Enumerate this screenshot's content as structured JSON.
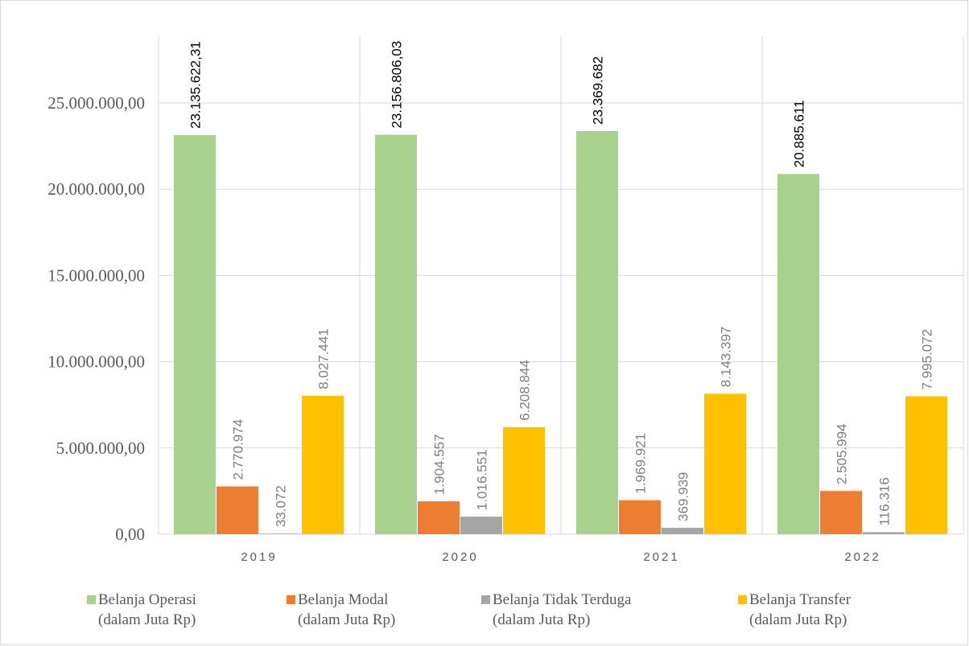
{
  "chart_data": {
    "type": "bar",
    "title": "",
    "xlabel": "",
    "ylabel": "",
    "categories": [
      "2019",
      "2020",
      "2021",
      "2022"
    ],
    "ylim": [
      0,
      25000000
    ],
    "yticks": [
      0,
      5000000,
      10000000,
      15000000,
      20000000,
      25000000
    ],
    "ytick_labels": [
      "0,00",
      "5.000.000,00",
      "10.000.000,00",
      "15.000.000,00",
      "20.000.000,00",
      "25.000.000,00"
    ],
    "grid": true,
    "legend_position": "bottom",
    "series": [
      {
        "name": "Belanja Operasi (dalam Juta Rp)",
        "legend_lines": [
          "Belanja Operasi",
          "(dalam Juta Rp)"
        ],
        "color": "#a9d18e",
        "label_color": "#000000",
        "values": [
          23135622.31,
          23156806.03,
          23369682,
          20885611
        ],
        "labels": [
          "23.135.622,31",
          "23.156.806,03",
          "23.369.682",
          "20.885.611"
        ]
      },
      {
        "name": "Belanja Modal (dalam Juta Rp)",
        "legend_lines": [
          "Belanja Modal",
          "(dalam Juta Rp)"
        ],
        "color": "#ed7d31",
        "label_color": "#7f7f7f",
        "values": [
          2770974,
          1904557,
          1969921,
          2505994
        ],
        "labels": [
          "2.770.974",
          "1.904.557",
          "1.969.921",
          "2.505.994"
        ]
      },
      {
        "name": "Belanja Tidak Terduga (dalam Juta Rp)",
        "legend_lines": [
          "Belanja Tidak Terduga",
          "(dalam Juta Rp)"
        ],
        "color": "#a5a5a5",
        "label_color": "#7f7f7f",
        "values": [
          33072,
          1016551,
          369939,
          116316
        ],
        "labels": [
          "33.072",
          "1.016.551",
          "369.939",
          "116.316"
        ]
      },
      {
        "name": "Belanja Transfer (dalam Juta Rp)",
        "legend_lines": [
          "Belanja Transfer",
          "(dalam Juta Rp)"
        ],
        "color": "#ffc000",
        "label_color": "#7f7f7f",
        "values": [
          8027441,
          6208844,
          8143397,
          7995072
        ],
        "labels": [
          "8.027.441",
          "6.208.844",
          "8.143.397",
          "7.995.072"
        ]
      }
    ]
  }
}
